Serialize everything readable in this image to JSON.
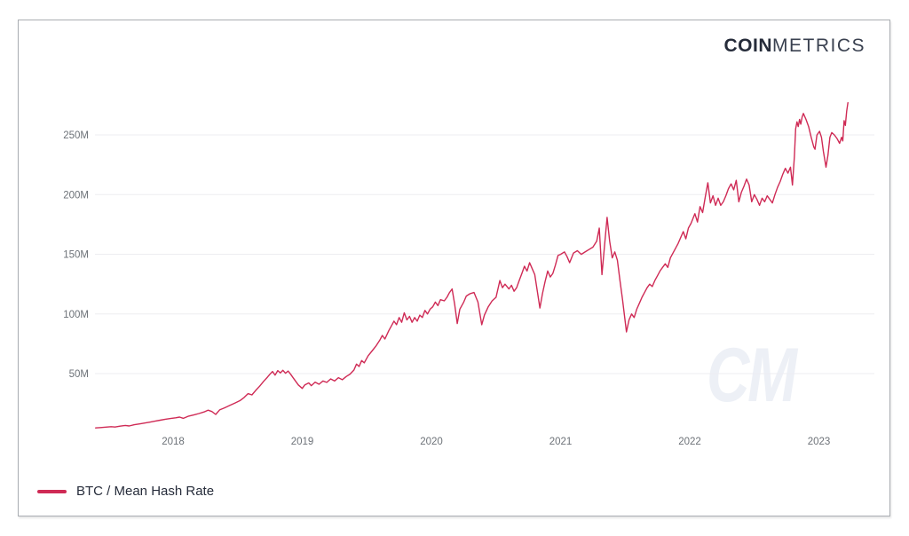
{
  "header": {
    "logo_bold": "COIN",
    "logo_light": "METRICS"
  },
  "watermark": "CM",
  "legend": {
    "label": "BTC / Mean Hash Rate",
    "swatch_color": "#cf2a55"
  },
  "colors": {
    "line": "#cf2a55",
    "grid": "#ededf1",
    "tick_text": "#6d7278",
    "logo_text": "#262c3a",
    "card_border": "#a9adb2",
    "watermark": "#edf0f6"
  },
  "chart_data": {
    "type": "line",
    "title": "",
    "xlabel": "",
    "ylabel": "",
    "grid": "horizontal",
    "legend_position": "bottom-left",
    "xlim": [
      2017.4,
      2023.43
    ],
    "ylim": [
      0,
      283
    ],
    "x_ticks": [
      {
        "value": 2018,
        "label": "2018"
      },
      {
        "value": 2019,
        "label": "2019"
      },
      {
        "value": 2020,
        "label": "2020"
      },
      {
        "value": 2021,
        "label": "2021"
      },
      {
        "value": 2022,
        "label": "2022"
      },
      {
        "value": 2023,
        "label": "2023"
      }
    ],
    "y_ticks": [
      {
        "value": 50,
        "label": "50M"
      },
      {
        "value": 100,
        "label": "100M"
      },
      {
        "value": 150,
        "label": "150M"
      },
      {
        "value": 200,
        "label": "200M"
      },
      {
        "value": 250,
        "label": "250M"
      }
    ],
    "series": [
      {
        "name": "BTC / Mean Hash Rate",
        "color": "#cf2a55",
        "points": [
          [
            2017.4,
            4.5
          ],
          [
            2017.44,
            4.8
          ],
          [
            2017.48,
            5.2
          ],
          [
            2017.52,
            5.6
          ],
          [
            2017.55,
            5.3
          ],
          [
            2017.59,
            6.0
          ],
          [
            2017.63,
            6.6
          ],
          [
            2017.66,
            6.2
          ],
          [
            2017.7,
            7.2
          ],
          [
            2017.74,
            7.9
          ],
          [
            2017.78,
            8.6
          ],
          [
            2017.82,
            9.4
          ],
          [
            2017.86,
            10.2
          ],
          [
            2017.9,
            11.0
          ],
          [
            2017.94,
            11.8
          ],
          [
            2017.98,
            12.4
          ],
          [
            2018.02,
            13.0
          ],
          [
            2018.05,
            13.6
          ],
          [
            2018.08,
            12.6
          ],
          [
            2018.12,
            14.4
          ],
          [
            2018.16,
            15.4
          ],
          [
            2018.2,
            16.6
          ],
          [
            2018.24,
            17.9
          ],
          [
            2018.27,
            19.4
          ],
          [
            2018.3,
            18.3
          ],
          [
            2018.33,
            15.8
          ],
          [
            2018.36,
            19.6
          ],
          [
            2018.4,
            21.4
          ],
          [
            2018.44,
            23.4
          ],
          [
            2018.48,
            25.4
          ],
          [
            2018.52,
            27.6
          ],
          [
            2018.55,
            30.0
          ],
          [
            2018.58,
            33.2
          ],
          [
            2018.61,
            32.2
          ],
          [
            2018.64,
            36.0
          ],
          [
            2018.67,
            39.5
          ],
          [
            2018.7,
            43.5
          ],
          [
            2018.73,
            47.0
          ],
          [
            2018.75,
            49.5
          ],
          [
            2018.77,
            51.8
          ],
          [
            2018.79,
            48.8
          ],
          [
            2018.81,
            52.6
          ],
          [
            2018.83,
            50.6
          ],
          [
            2018.85,
            52.8
          ],
          [
            2018.87,
            50.3
          ],
          [
            2018.89,
            52.2
          ],
          [
            2018.91,
            49.5
          ],
          [
            2018.93,
            46.5
          ],
          [
            2018.95,
            43.5
          ],
          [
            2018.97,
            40.5
          ],
          [
            2019.0,
            37.6
          ],
          [
            2019.02,
            40.6
          ],
          [
            2019.05,
            42.2
          ],
          [
            2019.07,
            39.9
          ],
          [
            2019.1,
            42.9
          ],
          [
            2019.13,
            41.1
          ],
          [
            2019.16,
            43.9
          ],
          [
            2019.19,
            42.7
          ],
          [
            2019.22,
            45.6
          ],
          [
            2019.25,
            43.9
          ],
          [
            2019.28,
            46.6
          ],
          [
            2019.31,
            44.9
          ],
          [
            2019.34,
            47.6
          ],
          [
            2019.37,
            49.6
          ],
          [
            2019.4,
            53.0
          ],
          [
            2019.42,
            58.0
          ],
          [
            2019.44,
            56.0
          ],
          [
            2019.46,
            61.0
          ],
          [
            2019.48,
            59.0
          ],
          [
            2019.51,
            65.0
          ],
          [
            2019.54,
            69.0
          ],
          [
            2019.57,
            73.0
          ],
          [
            2019.6,
            78.0
          ],
          [
            2019.62,
            82.0
          ],
          [
            2019.64,
            79.0
          ],
          [
            2019.67,
            86.0
          ],
          [
            2019.69,
            90.0
          ],
          [
            2019.71,
            94.0
          ],
          [
            2019.73,
            91.0
          ],
          [
            2019.75,
            97.0
          ],
          [
            2019.77,
            93.0
          ],
          [
            2019.79,
            101.0
          ],
          [
            2019.81,
            95.0
          ],
          [
            2019.83,
            98.0
          ],
          [
            2019.85,
            93.0
          ],
          [
            2019.87,
            97.0
          ],
          [
            2019.89,
            94.0
          ],
          [
            2019.91,
            99.0
          ],
          [
            2019.93,
            97.0
          ],
          [
            2019.95,
            103.0
          ],
          [
            2019.97,
            100.0
          ],
          [
            2019.99,
            104.0
          ],
          [
            2020.01,
            106
          ],
          [
            2020.03,
            110
          ],
          [
            2020.05,
            107
          ],
          [
            2020.07,
            112
          ],
          [
            2020.1,
            111
          ],
          [
            2020.12,
            114
          ],
          [
            2020.14,
            118
          ],
          [
            2020.16,
            121
          ],
          [
            2020.18,
            108
          ],
          [
            2020.2,
            92
          ],
          [
            2020.22,
            104
          ],
          [
            2020.25,
            110
          ],
          [
            2020.27,
            115
          ],
          [
            2020.3,
            117
          ],
          [
            2020.33,
            118
          ],
          [
            2020.36,
            110
          ],
          [
            2020.39,
            91
          ],
          [
            2020.41,
            99
          ],
          [
            2020.44,
            106
          ],
          [
            2020.47,
            111
          ],
          [
            2020.5,
            114
          ],
          [
            2020.53,
            128
          ],
          [
            2020.55,
            122
          ],
          [
            2020.57,
            125
          ],
          [
            2020.6,
            121
          ],
          [
            2020.62,
            124
          ],
          [
            2020.64,
            119
          ],
          [
            2020.66,
            122
          ],
          [
            2020.68,
            128
          ],
          [
            2020.7,
            134
          ],
          [
            2020.72,
            140
          ],
          [
            2020.74,
            136
          ],
          [
            2020.76,
            143
          ],
          [
            2020.78,
            138
          ],
          [
            2020.8,
            133
          ],
          [
            2020.82,
            119
          ],
          [
            2020.84,
            105
          ],
          [
            2020.86,
            117
          ],
          [
            2020.88,
            127
          ],
          [
            2020.9,
            136
          ],
          [
            2020.92,
            131
          ],
          [
            2020.94,
            134
          ],
          [
            2020.96,
            141
          ],
          [
            2020.98,
            149
          ],
          [
            2021.0,
            150
          ],
          [
            2021.03,
            152
          ],
          [
            2021.05,
            148
          ],
          [
            2021.07,
            143
          ],
          [
            2021.1,
            151
          ],
          [
            2021.13,
            153
          ],
          [
            2021.16,
            150
          ],
          [
            2021.19,
            152
          ],
          [
            2021.22,
            154
          ],
          [
            2021.25,
            156
          ],
          [
            2021.28,
            161
          ],
          [
            2021.3,
            172
          ],
          [
            2021.32,
            133
          ],
          [
            2021.34,
            157
          ],
          [
            2021.36,
            181
          ],
          [
            2021.38,
            161
          ],
          [
            2021.4,
            147
          ],
          [
            2021.42,
            152
          ],
          [
            2021.44,
            145
          ],
          [
            2021.46,
            128
          ],
          [
            2021.48,
            112
          ],
          [
            2021.51,
            85
          ],
          [
            2021.53,
            95
          ],
          [
            2021.55,
            100
          ],
          [
            2021.57,
            97
          ],
          [
            2021.59,
            104
          ],
          [
            2021.61,
            109
          ],
          [
            2021.63,
            114
          ],
          [
            2021.65,
            118
          ],
          [
            2021.67,
            122
          ],
          [
            2021.69,
            125
          ],
          [
            2021.71,
            123
          ],
          [
            2021.73,
            128
          ],
          [
            2021.75,
            132
          ],
          [
            2021.77,
            136
          ],
          [
            2021.79,
            139
          ],
          [
            2021.81,
            142
          ],
          [
            2021.83,
            139
          ],
          [
            2021.85,
            147
          ],
          [
            2021.87,
            151
          ],
          [
            2021.89,
            155
          ],
          [
            2021.91,
            159
          ],
          [
            2021.93,
            164
          ],
          [
            2021.95,
            169
          ],
          [
            2021.97,
            163
          ],
          [
            2021.99,
            172
          ],
          [
            2022.01,
            176
          ],
          [
            2022.04,
            184
          ],
          [
            2022.06,
            177
          ],
          [
            2022.08,
            190
          ],
          [
            2022.1,
            185
          ],
          [
            2022.12,
            198
          ],
          [
            2022.14,
            210
          ],
          [
            2022.16,
            193
          ],
          [
            2022.18,
            199
          ],
          [
            2022.2,
            191
          ],
          [
            2022.22,
            197
          ],
          [
            2022.24,
            191
          ],
          [
            2022.26,
            194
          ],
          [
            2022.28,
            199
          ],
          [
            2022.3,
            205
          ],
          [
            2022.32,
            209
          ],
          [
            2022.34,
            204
          ],
          [
            2022.36,
            212
          ],
          [
            2022.38,
            194
          ],
          [
            2022.4,
            202
          ],
          [
            2022.42,
            207
          ],
          [
            2022.44,
            213
          ],
          [
            2022.46,
            208
          ],
          [
            2022.48,
            194
          ],
          [
            2022.5,
            200
          ],
          [
            2022.52,
            196
          ],
          [
            2022.54,
            191
          ],
          [
            2022.56,
            197
          ],
          [
            2022.58,
            194
          ],
          [
            2022.6,
            199
          ],
          [
            2022.62,
            196
          ],
          [
            2022.64,
            193
          ],
          [
            2022.66,
            200
          ],
          [
            2022.68,
            206
          ],
          [
            2022.7,
            211
          ],
          [
            2022.72,
            217
          ],
          [
            2022.74,
            222
          ],
          [
            2022.76,
            218
          ],
          [
            2022.78,
            223
          ],
          [
            2022.795,
            208
          ],
          [
            2022.81,
            232
          ],
          [
            2022.82,
            255
          ],
          [
            2022.83,
            261
          ],
          [
            2022.84,
            257
          ],
          [
            2022.85,
            263
          ],
          [
            2022.86,
            259
          ],
          [
            2022.87,
            265
          ],
          [
            2022.88,
            268
          ],
          [
            2022.9,
            263
          ],
          [
            2022.92,
            257
          ],
          [
            2022.94,
            248
          ],
          [
            2022.96,
            240
          ],
          [
            2022.97,
            238
          ],
          [
            2022.985,
            250
          ],
          [
            2023.005,
            253
          ],
          [
            2023.02,
            248
          ],
          [
            2023.035,
            236
          ],
          [
            2023.055,
            223
          ],
          [
            2023.07,
            233
          ],
          [
            2023.085,
            248
          ],
          [
            2023.1,
            252
          ],
          [
            2023.12,
            250
          ],
          [
            2023.14,
            247
          ],
          [
            2023.16,
            243
          ],
          [
            2023.175,
            248
          ],
          [
            2023.185,
            245
          ],
          [
            2023.195,
            262
          ],
          [
            2023.205,
            258
          ],
          [
            2023.215,
            270
          ],
          [
            2023.225,
            277
          ]
        ]
      }
    ]
  }
}
